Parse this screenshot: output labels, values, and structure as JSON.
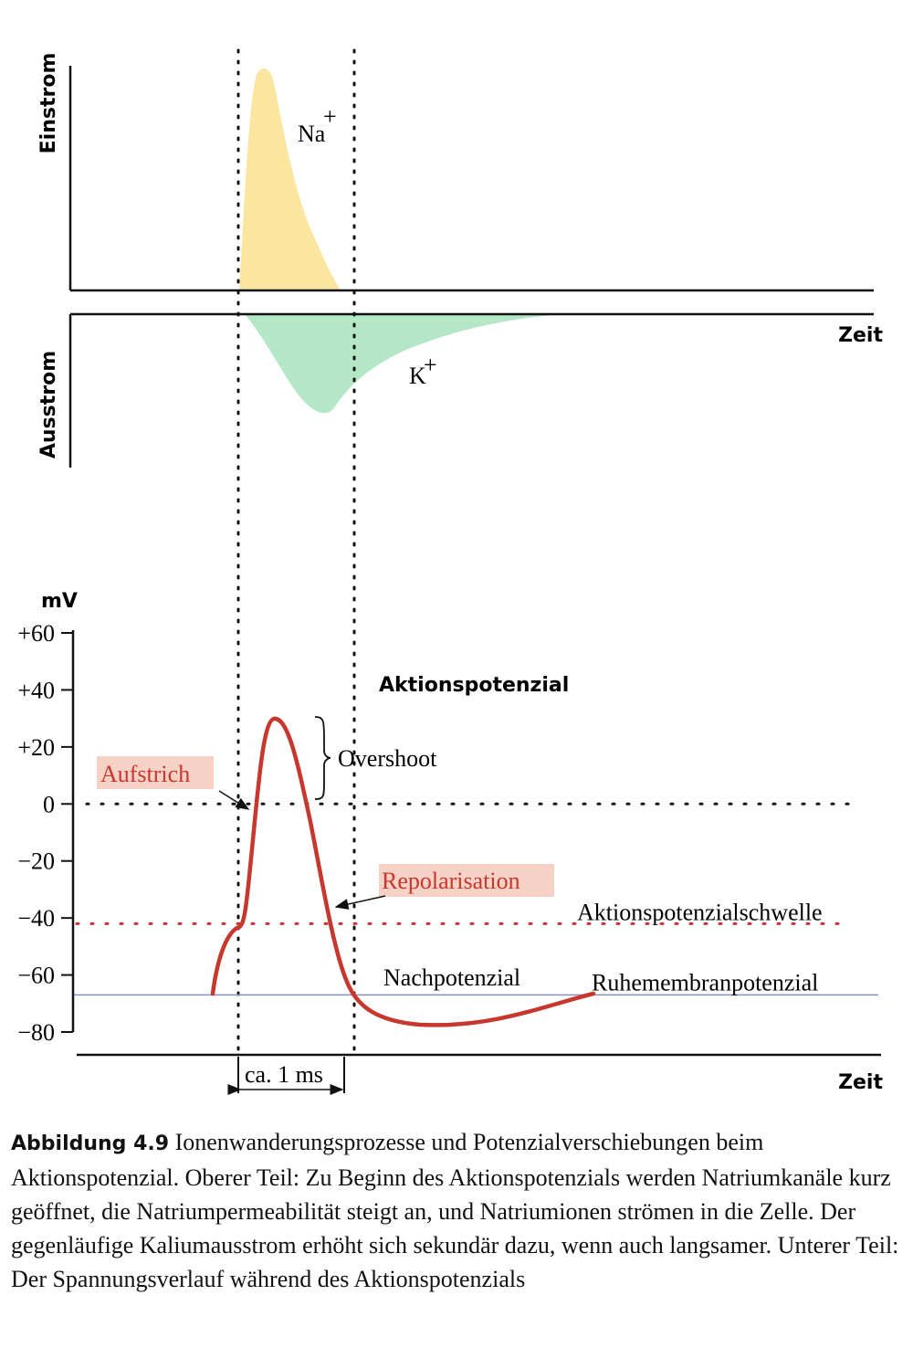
{
  "upper": {
    "inflow_label": "Einstrom",
    "outflow_label": "Ausstrom",
    "time_label": "Zeit",
    "sodium": {
      "base": "Na",
      "charge": "+"
    },
    "potassium": {
      "base": "K",
      "charge": "+"
    }
  },
  "lower": {
    "unit": "mV",
    "title": "Aktionspotenzial",
    "ylim": [
      -80,
      60
    ],
    "yticks": [
      {
        "value": 60,
        "label": "+60"
      },
      {
        "value": 40,
        "label": "+40"
      },
      {
        "value": 20,
        "label": "+20"
      },
      0,
      {
        "value": -20,
        "label": "−20"
      },
      {
        "value": -40,
        "label": "−40"
      },
      {
        "value": -60,
        "label": "−60"
      },
      {
        "value": -80,
        "label": "−80"
      }
    ],
    "threshold": {
      "label": "Aktionspotenzialschwelle",
      "value": -42
    },
    "resting": {
      "label": "Ruhemembranpotenzial",
      "value": -67
    },
    "upstroke_label": "Aufstrich",
    "repolarisation_label": "Repolarisation",
    "overshoot_label": "Overshoot",
    "afterpotential_label": "Nachpotenzial",
    "time_label": "Zeit",
    "duration_label": "ca. 1 ms"
  },
  "caption": {
    "label": "Abbildung 4.9",
    "text": "Ionenwanderungsprozesse und Potenzialverschiebungen beim Aktionspotenzial. Oberer Teil: Zu Beginn des Aktionspotenzials werden Natriumkanäle kurz geöffnet, die Natriumpermeabilität steigt an, und Natriumionen strömen in die Zelle. Der gegenläufige Kaliumausstrom erhöht sich sekundär dazu, wenn auch langsamer. Unterer Teil: Der Spannungsverlauf während des Aktionspotenzials"
  }
}
